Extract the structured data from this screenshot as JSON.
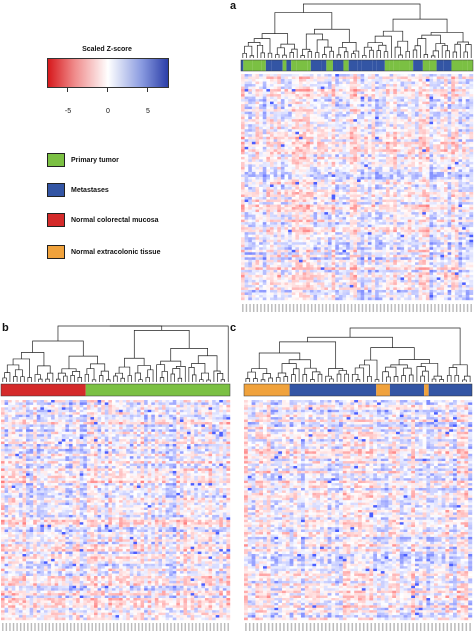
{
  "panel_labels": {
    "a": "a",
    "b": "b",
    "c": "c"
  },
  "legend": {
    "title": "Scaled Z-score",
    "ticks": [
      "-5",
      "0",
      "5"
    ],
    "colors": {
      "low": "#d7191c",
      "mid": "#ffffff",
      "high": "#2b3ea8"
    }
  },
  "sample_key": [
    {
      "label": "Primary tumor",
      "color": "#7bc043"
    },
    {
      "label": "Metastases",
      "color": "#3355a4"
    },
    {
      "label": "Normal colorectal mucosa",
      "color": "#d42a2a"
    },
    {
      "label": "Normal extracolonic tissue",
      "color": "#f0a23c"
    }
  ],
  "chart_data": [
    {
      "type": "heatmap",
      "panel": "a",
      "annotation_groups": [
        "Primary tumor",
        "Metastases"
      ],
      "annotation_pattern": "interleaved",
      "value_range": [
        -5,
        5
      ]
    },
    {
      "type": "heatmap",
      "panel": "b",
      "annotation_groups": [
        "Normal colorectal mucosa",
        "Primary tumor"
      ],
      "annotation_pattern": "two contiguous blocks",
      "value_range": [
        -5,
        5
      ]
    },
    {
      "type": "heatmap",
      "panel": "c",
      "annotation_groups": [
        "Normal extracolonic tissue",
        "Metastases"
      ],
      "annotation_pattern": "blocks",
      "value_range": [
        -5,
        5
      ]
    }
  ]
}
